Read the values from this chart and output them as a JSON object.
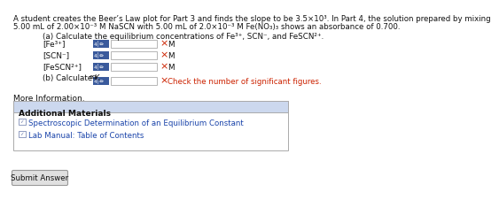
{
  "bg_color": "#ffffff",
  "line1": "A student creates the Beer’s Law plot for Part 3 and finds the slope to be 3.5×10³. In Part 4, the solution prepared by mixing",
  "line2": "5.00 mL of 2.00×10⁻³ M NaSCN with 5.00 mL of 2.0×10⁻³ M Fe(NO₃)₃ shows an absorbance of 0.700.",
  "part_a": "(a) Calculate the equilibrium concentrations of Fe³⁺, SCN⁻, and FeSCN²⁺.",
  "row_labels": [
    "[Fe³⁺]",
    "[SCN⁻]",
    "[FeSCN²⁺]"
  ],
  "part_b": "(b) Calculate K",
  "part_b_sub": "eq",
  "check_msg": "Check the number of significant figures.",
  "more_info": "More Information.",
  "add_mat_title": "Additional Materials",
  "links": [
    "Spectroscopic Determination of an Equilibrium Constant",
    "Lab Manual: Table of Contents"
  ],
  "submit_btn": "Submit Answer",
  "blue_box_color": "#3a5a9c",
  "error_color": "#cc2200",
  "link_color": "#1a44aa",
  "section_bg": "#ccd8ee",
  "border_color": "#aaaaaa",
  "text_color": "#111111",
  "font_size": 6.5
}
